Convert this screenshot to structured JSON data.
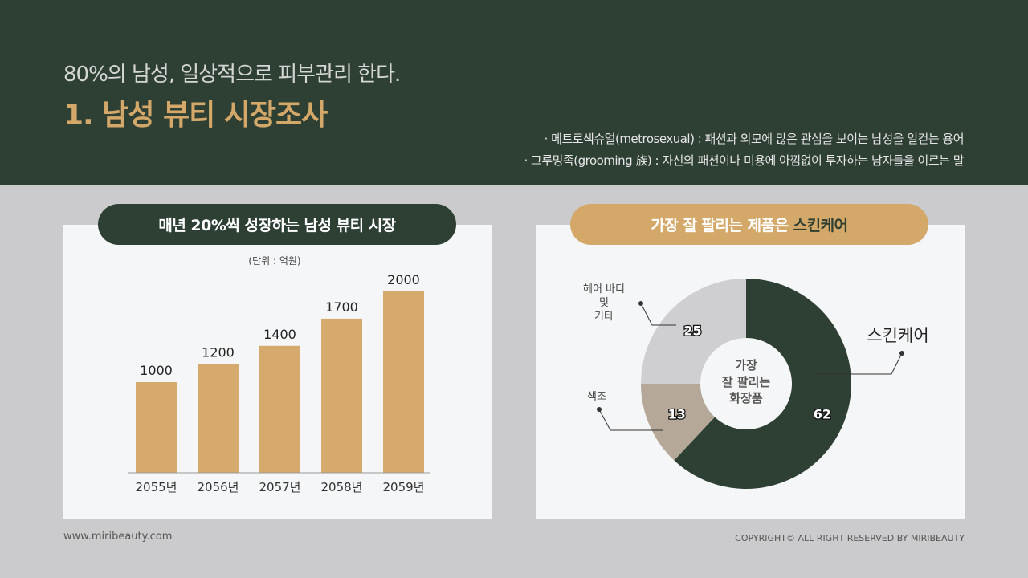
{
  "header": {
    "subtitle": "80%의 남성, 일상적으로 피부관리 한다.",
    "title": "1. 남성 뷰티 시장조사",
    "notes": [
      "· 메트로섹슈얼(metrosexual) : 패션과 외모에 많은 관심을 보이는 남성을 일컫는 용어",
      "· 그루밍족(grooming 族) : 자신의 패션이나 미용에 아낌없이 투자하는 남자들을 이르는 말"
    ]
  },
  "left": {
    "pill": "매년 20%씩 성장하는 남성 뷰티 시장",
    "unit": "(단위 : 억원)"
  },
  "right": {
    "pill_prefix": "가장 잘 팔리는 제품은 ",
    "pill_highlight": "스킨케어",
    "center": [
      "가장",
      "잘 팔리는",
      "화장품"
    ]
  },
  "footer": {
    "url": "www.miribeauty.com",
    "copyright": "COPYRIGHT© ALL RIGHT RESERVED BY MIRIBEAUTY"
  },
  "colors": {
    "dark": "#2e3f34",
    "gold": "#d4a868",
    "bar": "#d6a96c",
    "tan": "#b6a898",
    "grey": "#cfcfd1"
  },
  "chart_data": [
    {
      "type": "bar",
      "categories": [
        "2055년",
        "2056년",
        "2057년",
        "2058년",
        "2059년"
      ],
      "values": [
        1000,
        1200,
        1400,
        1700,
        2000
      ],
      "ylabel": "(단위 : 억원)",
      "ylim": [
        0,
        2000
      ],
      "grid": false
    },
    {
      "type": "pie",
      "donut": true,
      "labels": [
        "스킨케어",
        "색조",
        "헤어 바디 및 기타"
      ],
      "values": [
        62,
        13,
        25
      ],
      "colors": [
        "#2e3f34",
        "#b6a898",
        "#cfcfd1"
      ]
    }
  ]
}
